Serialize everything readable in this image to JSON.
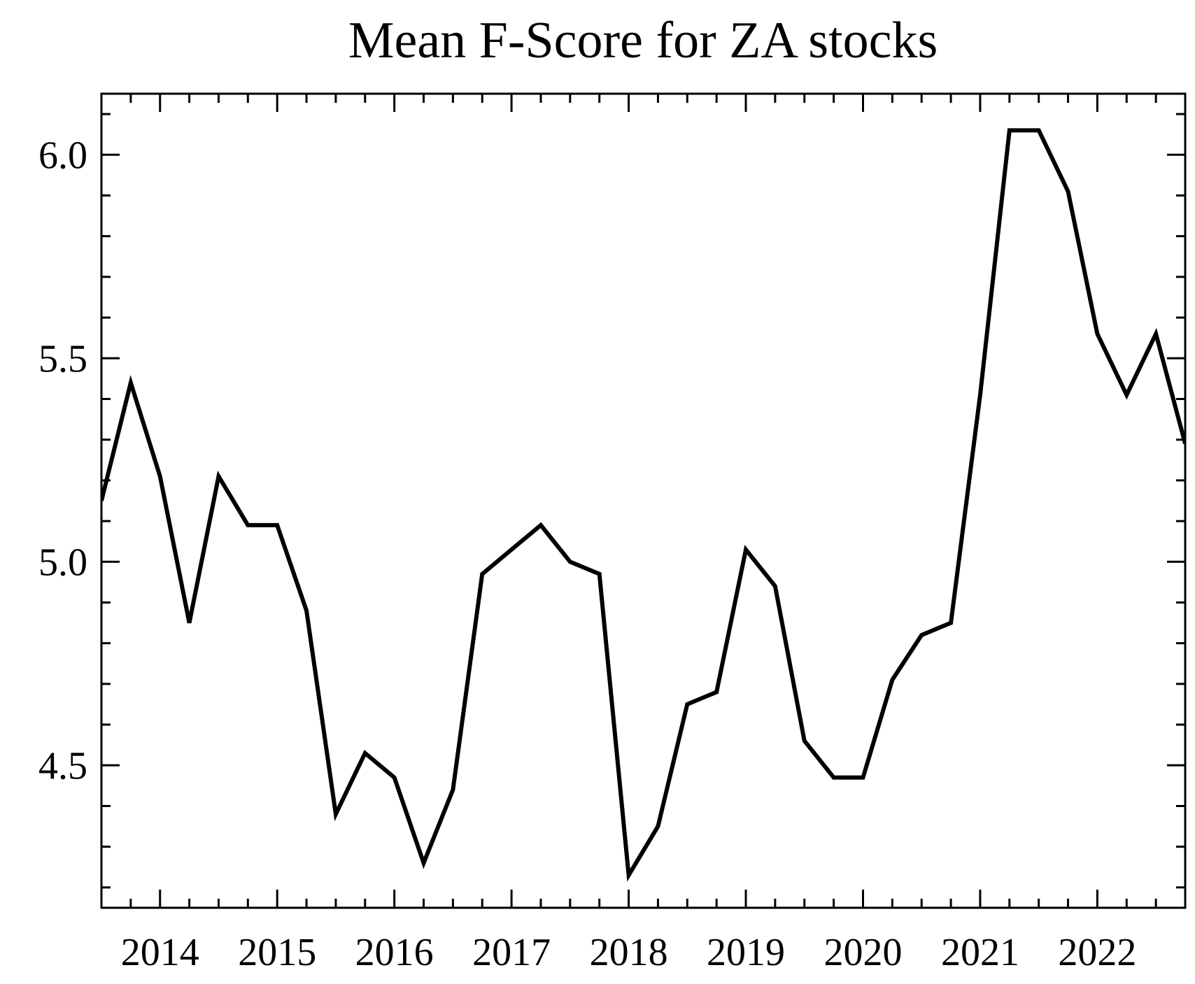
{
  "chart_data": {
    "type": "line",
    "title": "Mean F-Score for ZA stocks",
    "xlabel": "",
    "ylabel": "",
    "xlim": [
      2013.5,
      2022.75
    ],
    "ylim": [
      4.15,
      6.15
    ],
    "grid": false,
    "x_ticks": [
      {
        "value": 2014,
        "label": "2014"
      },
      {
        "value": 2015,
        "label": "2015"
      },
      {
        "value": 2016,
        "label": "2016"
      },
      {
        "value": 2017,
        "label": "2017"
      },
      {
        "value": 2018,
        "label": "2018"
      },
      {
        "value": 2019,
        "label": "2019"
      },
      {
        "value": 2020,
        "label": "2020"
      },
      {
        "value": 2021,
        "label": "2021"
      },
      {
        "value": 2022,
        "label": "2022"
      }
    ],
    "y_ticks": [
      {
        "value": 4.5,
        "label": "4.5"
      },
      {
        "value": 5.0,
        "label": "5.0"
      },
      {
        "value": 5.5,
        "label": "5.5"
      },
      {
        "value": 6.0,
        "label": "6.0"
      }
    ],
    "series": [
      {
        "color": "#000000",
        "x": [
          2013.5,
          2013.75,
          2014.0,
          2014.25,
          2014.5,
          2014.75,
          2015.0,
          2015.25,
          2015.5,
          2015.75,
          2016.0,
          2016.25,
          2016.5,
          2016.75,
          2017.0,
          2017.25,
          2017.5,
          2017.75,
          2018.0,
          2018.25,
          2018.5,
          2018.75,
          2019.0,
          2019.25,
          2019.5,
          2019.75,
          2020.0,
          2020.25,
          2020.5,
          2020.75,
          2021.0,
          2021.25,
          2021.5,
          2021.75,
          2022.0,
          2022.25,
          2022.5,
          2022.75
        ],
        "values": [
          5.15,
          5.44,
          5.21,
          4.85,
          5.21,
          5.09,
          5.09,
          4.88,
          4.38,
          4.53,
          4.47,
          4.26,
          4.44,
          4.97,
          5.03,
          5.09,
          5.0,
          4.97,
          4.23,
          4.35,
          4.65,
          4.68,
          5.03,
          4.94,
          4.56,
          4.47,
          4.47,
          4.71,
          4.82,
          4.85,
          5.41,
          6.06,
          6.06,
          5.91,
          5.56,
          5.41,
          5.56,
          5.29
        ]
      }
    ]
  }
}
